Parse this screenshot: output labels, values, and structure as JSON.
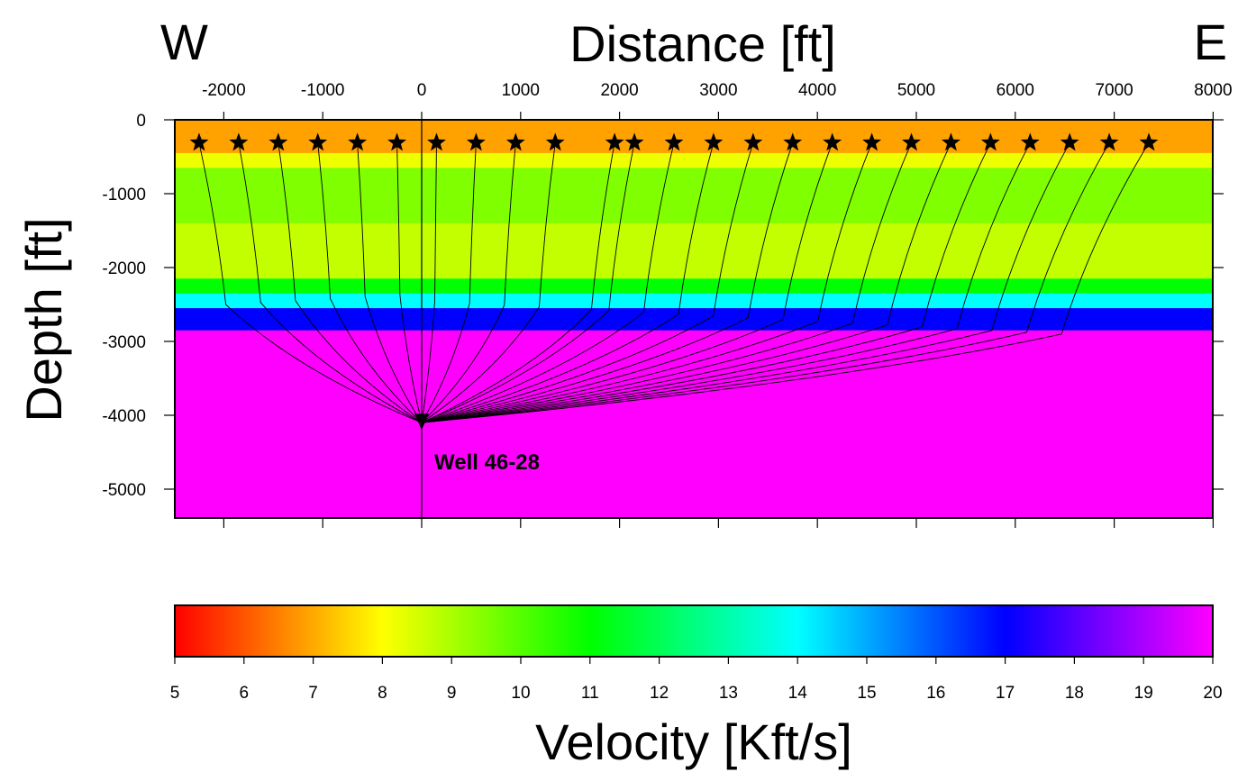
{
  "titles": {
    "west": "W",
    "east": "E",
    "distance_axis": "Distance [ft]",
    "depth_axis": "Depth [ft]",
    "colorbar_axis": "Velocity [Kft/s]",
    "well_label": "Well 46-28"
  },
  "distance_axis": {
    "min": -2500,
    "max": 8000,
    "ticks": [
      -2000,
      -1000,
      0,
      1000,
      2000,
      3000,
      4000,
      5000,
      6000,
      7000,
      8000
    ],
    "tick_labels": [
      "-2000",
      "-1000",
      "0",
      "1000",
      "2000",
      "3000",
      "4000",
      "5000",
      "6000",
      "7000",
      "8000"
    ]
  },
  "depth_axis": {
    "min": -5400,
    "max": 0,
    "ticks": [
      0,
      -1000,
      -2000,
      -3000,
      -4000,
      -5000
    ],
    "tick_labels": [
      "0",
      "-1000",
      "-2000",
      "-3000",
      "-4000",
      "-5000"
    ]
  },
  "colorbar": {
    "min": 5,
    "max": 20,
    "ticks": [
      5,
      6,
      7,
      8,
      9,
      10,
      11,
      12,
      13,
      14,
      15,
      16,
      17,
      18,
      19,
      20
    ],
    "tick_labels": [
      "5",
      "6",
      "7",
      "8",
      "9",
      "10",
      "11",
      "12",
      "13",
      "14",
      "15",
      "16",
      "17",
      "18",
      "19",
      "20"
    ]
  },
  "velocity_layers": [
    {
      "top": 0,
      "bottom": -450,
      "velocity": 6.9
    },
    {
      "top": -450,
      "bottom": -650,
      "velocity": 8.2
    },
    {
      "top": -650,
      "bottom": -1400,
      "velocity": 9.5
    },
    {
      "top": -1400,
      "bottom": -2150,
      "velocity": 8.7
    },
    {
      "top": -2150,
      "bottom": -2350,
      "velocity": 11.0
    },
    {
      "top": -2350,
      "bottom": -2550,
      "velocity": 14.0
    },
    {
      "top": -2550,
      "bottom": -2850,
      "velocity": 17.0
    },
    {
      "top": -2850,
      "bottom": -5400,
      "velocity": 20.0
    }
  ],
  "well": {
    "x": 0,
    "receiver_depth": -4100
  },
  "source_depth": -310,
  "sources": [
    -2250,
    -1850,
    -1450,
    -1050,
    -650,
    -250,
    150,
    550,
    950,
    1350,
    1950,
    2150,
    2550,
    2950,
    3350,
    3750,
    4150,
    4550,
    4950,
    5350,
    5750,
    6150,
    6550,
    6950,
    7350
  ],
  "icons": {
    "source": "star-icon",
    "receiver": "triangle-down-icon"
  }
}
